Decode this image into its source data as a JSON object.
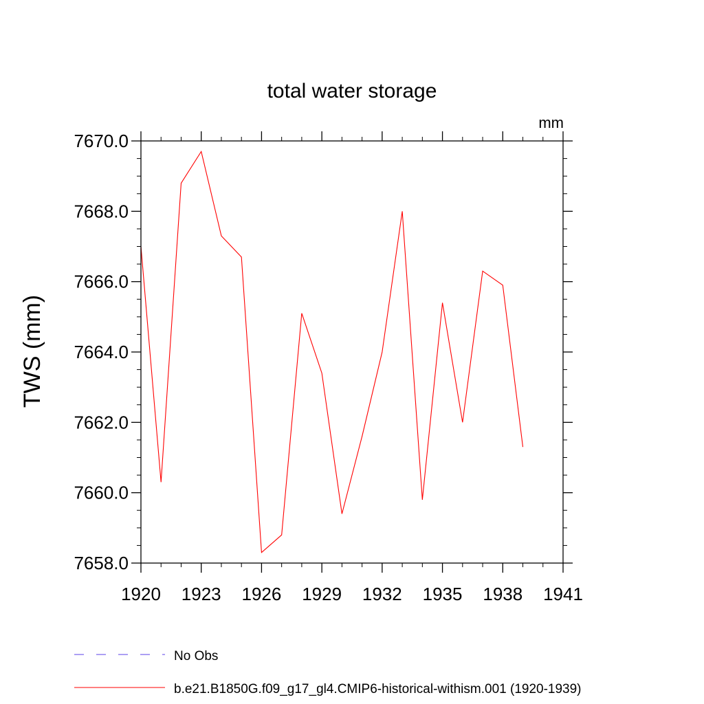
{
  "chart_data": {
    "type": "line",
    "title": "total water storage",
    "units_label": "mm",
    "ylabel": "TWS  (mm)",
    "xlabel": "",
    "xlim": [
      1920,
      1941
    ],
    "ylim": [
      7658.0,
      7670.0
    ],
    "x_ticks": [
      1920,
      1923,
      1926,
      1929,
      1932,
      1935,
      1938,
      1941
    ],
    "x_tick_labels": [
      "1920",
      "1923",
      "1926",
      "1929",
      "1932",
      "1935",
      "1938",
      "1941"
    ],
    "y_ticks": [
      7658.0,
      7660.0,
      7662.0,
      7664.0,
      7666.0,
      7668.0,
      7670.0
    ],
    "y_tick_labels": [
      "7658.0",
      "7660.0",
      "7662.0",
      "7664.0",
      "7666.0",
      "7668.0",
      "7670.0"
    ],
    "grid": false,
    "legend_position": "bottom",
    "series": [
      {
        "name": "No Obs",
        "color": "#7b68ee",
        "dash": "dashed",
        "x": [],
        "values": []
      },
      {
        "name": "b.e21.B1850G.f09_g17_gl4.CMIP6-historical-withism.001 (1920-1939)",
        "color": "#ff0000",
        "dash": "solid",
        "x": [
          1920,
          1921,
          1922,
          1923,
          1924,
          1925,
          1926,
          1927,
          1928,
          1929,
          1930,
          1931,
          1932,
          1933,
          1934,
          1935,
          1936,
          1937,
          1938,
          1939
        ],
        "values": [
          7667.0,
          7660.3,
          7668.8,
          7669.7,
          7667.3,
          7666.7,
          7658.3,
          7658.8,
          7665.1,
          7663.4,
          7659.4,
          7661.6,
          7664.0,
          7668.0,
          7659.8,
          7665.4,
          7662.0,
          7666.3,
          7665.9,
          7661.3
        ]
      }
    ]
  }
}
